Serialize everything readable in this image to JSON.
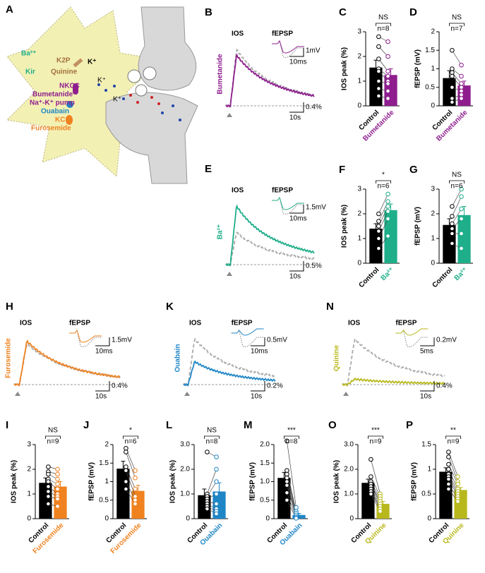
{
  "diagram": {
    "panel": "A",
    "labels": [
      "Ba²⁺",
      "Kir",
      "K2P",
      "Quinine",
      "K⁺",
      "NKCC",
      "Bumetanide",
      "Na⁺-K⁺ pump",
      "Ouabain",
      "KCC",
      "Furosemide",
      "K⁺",
      "K⁺"
    ]
  },
  "traces": [
    {
      "panel": "B",
      "drug": "Bumetanide",
      "color": "#8e1e8e",
      "ios": "IOS",
      "fepsp": "fEPSP",
      "scale_v": "1mV",
      "scale_t": "10ms",
      "scale_ios": "0.4%",
      "scale_ios_t": "10s"
    },
    {
      "panel": "E",
      "drug": "Ba²⁺",
      "color": "#1fae8a",
      "ios": "IOS",
      "fepsp": "fEPSP",
      "scale_v": "1.5mV",
      "scale_t": "10ms",
      "scale_ios": "0.5%",
      "scale_ios_t": "10s"
    },
    {
      "panel": "H",
      "drug": "Furosemide",
      "color": "#f08220",
      "ios": "IOS",
      "fepsp": "fEPSP",
      "scale_v": "1.5mV",
      "scale_t": "10ms",
      "scale_ios": "0.4%",
      "scale_ios_t": "10s"
    },
    {
      "panel": "K",
      "drug": "Ouabain",
      "color": "#1f86c6",
      "ios": "IOS",
      "fepsp": "fEPSP",
      "scale_v": "0.5mV",
      "scale_t": "10ms",
      "scale_ios": "0.2%",
      "scale_ios_t": "10s"
    },
    {
      "panel": "N",
      "drug": "Quinine",
      "color": "#b8b81c",
      "ios": "IOS",
      "fepsp": "fEPSP",
      "scale_v": "0.2mV",
      "scale_t": "5ms",
      "scale_ios": "0.4%",
      "scale_ios_t": "10s"
    }
  ],
  "chart_data": [
    {
      "type": "bar",
      "panel": "C",
      "ylabel": "IOS peak (%)",
      "categories": [
        "Control",
        "Bumetanide"
      ],
      "colors": [
        "#000000",
        "#8e1e8e"
      ],
      "values": [
        1.55,
        1.25
      ],
      "errors": [
        0.3,
        0.25
      ],
      "points": [
        [
          2.8,
          2.4,
          1.9,
          1.5,
          1.4,
          1.0,
          0.7,
          0.4
        ],
        [
          2.6,
          2.0,
          1.4,
          1.2,
          1.0,
          0.9,
          0.6,
          0.3
        ]
      ],
      "ylim": [
        0,
        3
      ],
      "yticks": [
        0,
        1,
        2,
        3
      ],
      "significance": "NS",
      "n_label": "n=8"
    },
    {
      "type": "bar",
      "panel": "D",
      "ylabel": "fEPSP (mV)",
      "categories": [
        "Control",
        "Bumetanide"
      ],
      "colors": [
        "#000000",
        "#8e1e8e"
      ],
      "values": [
        0.75,
        0.55
      ],
      "errors": [
        0.2,
        0.12
      ],
      "points": [
        [
          1.5,
          1.0,
          0.9,
          0.8,
          0.5,
          0.2,
          0.1
        ],
        [
          1.1,
          0.8,
          0.6,
          0.5,
          0.4,
          0.3,
          0.2
        ]
      ],
      "ylim": [
        0,
        2
      ],
      "yticks": [
        0,
        0.5,
        1,
        1.5,
        2
      ],
      "significance": "NS",
      "n_label": "n=7"
    },
    {
      "type": "bar",
      "panel": "F",
      "ylabel": "IOS peak (%)",
      "categories": [
        "Control",
        "Ba²⁺"
      ],
      "colors": [
        "#000000",
        "#1fae8a"
      ],
      "values": [
        1.4,
        2.15
      ],
      "errors": [
        0.2,
        0.25
      ],
      "points": [
        [
          2.0,
          1.7,
          1.5,
          1.3,
          1.0,
          0.6
        ],
        [
          2.8,
          2.5,
          2.3,
          2.1,
          1.8,
          1.1
        ]
      ],
      "ylim": [
        0,
        3
      ],
      "yticks": [
        0,
        1,
        2,
        3
      ],
      "significance": "*",
      "n_label": "n=6"
    },
    {
      "type": "bar",
      "panel": "G",
      "ylabel": "fEPSP (mV)",
      "categories": [
        "Control",
        "Ba²⁺"
      ],
      "colors": [
        "#000000",
        "#1fae8a"
      ],
      "values": [
        1.55,
        1.95
      ],
      "errors": [
        0.25,
        0.35
      ],
      "points": [
        [
          2.3,
          1.9,
          1.6,
          1.4,
          1.2,
          0.8
        ],
        [
          3.0,
          2.7,
          2.2,
          1.8,
          1.2,
          0.6
        ]
      ],
      "ylim": [
        0,
        3
      ],
      "yticks": [
        0,
        1,
        2,
        3
      ],
      "significance": "NS",
      "n_label": "n=6"
    },
    {
      "type": "bar",
      "panel": "I",
      "ylabel": "IOS peak (%)",
      "categories": [
        "Control",
        "Furosemide"
      ],
      "colors": [
        "#000000",
        "#f08220"
      ],
      "values": [
        1.45,
        1.3
      ],
      "errors": [
        0.2,
        0.2
      ],
      "points": [
        [
          2.1,
          1.9,
          1.8,
          1.6,
          1.5,
          1.3,
          1.1,
          0.9,
          0.6
        ],
        [
          2.0,
          1.8,
          1.6,
          1.4,
          1.2,
          1.0,
          0.9,
          0.8,
          0.5
        ]
      ],
      "ylim": [
        0,
        3
      ],
      "yticks": [
        0,
        1,
        2,
        3
      ],
      "significance": "NS",
      "n_label": "n=9"
    },
    {
      "type": "bar",
      "panel": "J",
      "ylabel": "fEPSP (mV)",
      "categories": [
        "Control",
        "Furosemide"
      ],
      "colors": [
        "#000000",
        "#f08220"
      ],
      "values": [
        1.35,
        0.75
      ],
      "errors": [
        0.2,
        0.15
      ],
      "points": [
        [
          1.9,
          1.8,
          1.4,
          1.3,
          1.0,
          0.8
        ],
        [
          1.3,
          1.1,
          0.8,
          0.6,
          0.5,
          0.4
        ]
      ],
      "ylim": [
        0,
        2
      ],
      "yticks": [
        0,
        0.5,
        1,
        1.5,
        2
      ],
      "significance": "*",
      "n_label": "n=6"
    },
    {
      "type": "bar",
      "panel": "L",
      "ylabel": "IOS peak (%)",
      "categories": [
        "Control",
        "Ouabain"
      ],
      "colors": [
        "#000000",
        "#1f86c6"
      ],
      "values": [
        0.95,
        1.1
      ],
      "errors": [
        0.25,
        0.35
      ],
      "points": [
        [
          2.7,
          1.0,
          0.9,
          0.8,
          0.7,
          0.6,
          0.5,
          0.4
        ],
        [
          2.5,
          2.0,
          1.5,
          1.0,
          0.6,
          0.4,
          0.3,
          0.2
        ]
      ],
      "ylim": [
        0,
        3
      ],
      "yticks": [
        0,
        {
          "value": 1,
          "label": "1.0"
        },
        {
          "value": 2,
          "label": "2.0"
        },
        {
          "value": 3,
          "label": "3.0"
        }
      ],
      "significance": "NS",
      "n_label": "n=8"
    },
    {
      "type": "bar",
      "panel": "M",
      "ylabel": "fEPSP (mV)",
      "categories": [
        "Control",
        "Ouabain"
      ],
      "colors": [
        "#000000",
        "#1f86c6"
      ],
      "values": [
        1.1,
        0.1
      ],
      "errors": [
        0.15,
        0.04
      ],
      "points": [
        [
          2.1,
          1.3,
          1.2,
          1.1,
          1.0,
          0.9,
          0.7,
          0.5
        ],
        [
          0.3,
          0.2,
          0.15,
          0.1,
          0.05,
          0.05,
          0.02,
          0.01
        ]
      ],
      "ylim": [
        0,
        2
      ],
      "yticks": [
        0,
        0.5,
        {
          "value": 1,
          "label": "1.0"
        },
        1.5,
        {
          "value": 2,
          "label": "2.0"
        }
      ],
      "significance": "***",
      "n_label": "n=8"
    },
    {
      "type": "bar",
      "panel": "O",
      "ylabel": "IOS peak (%)",
      "categories": [
        "Control",
        "Quinine"
      ],
      "colors": [
        "#000000",
        "#b8b81c"
      ],
      "values": [
        1.45,
        0.6
      ],
      "errors": [
        0.15,
        0.1
      ],
      "points": [
        [
          2.4,
          1.7,
          1.5,
          1.4,
          1.4,
          1.3,
          1.2,
          1.1,
          1.0
        ],
        [
          1.0,
          0.9,
          0.8,
          0.7,
          0.6,
          0.5,
          0.4,
          0.4,
          0.3
        ]
      ],
      "ylim": [
        0,
        3
      ],
      "yticks": [
        0,
        {
          "value": 1,
          "label": "1.0"
        },
        {
          "value": 2,
          "label": "2.0"
        },
        {
          "value": 3,
          "label": "3.0"
        }
      ],
      "significance": "***",
      "n_label": "n=9"
    },
    {
      "type": "bar",
      "panel": "P",
      "ylabel": "fEPSP (mV)",
      "categories": [
        "Control",
        "Quinine"
      ],
      "colors": [
        "#000000",
        "#b8b81c"
      ],
      "values": [
        0.95,
        0.58
      ],
      "errors": [
        0.08,
        0.05
      ],
      "points": [
        [
          1.35,
          1.25,
          1.1,
          1.0,
          0.9,
          0.85,
          0.8,
          0.7,
          0.6
        ],
        [
          0.85,
          0.75,
          0.7,
          0.6,
          0.55,
          0.5,
          0.45,
          0.4,
          0.35
        ]
      ],
      "ylim": [
        0,
        1.5
      ],
      "yticks": [
        0,
        0.5,
        1,
        1.5
      ],
      "significance": "**",
      "n_label": "n=9"
    }
  ]
}
